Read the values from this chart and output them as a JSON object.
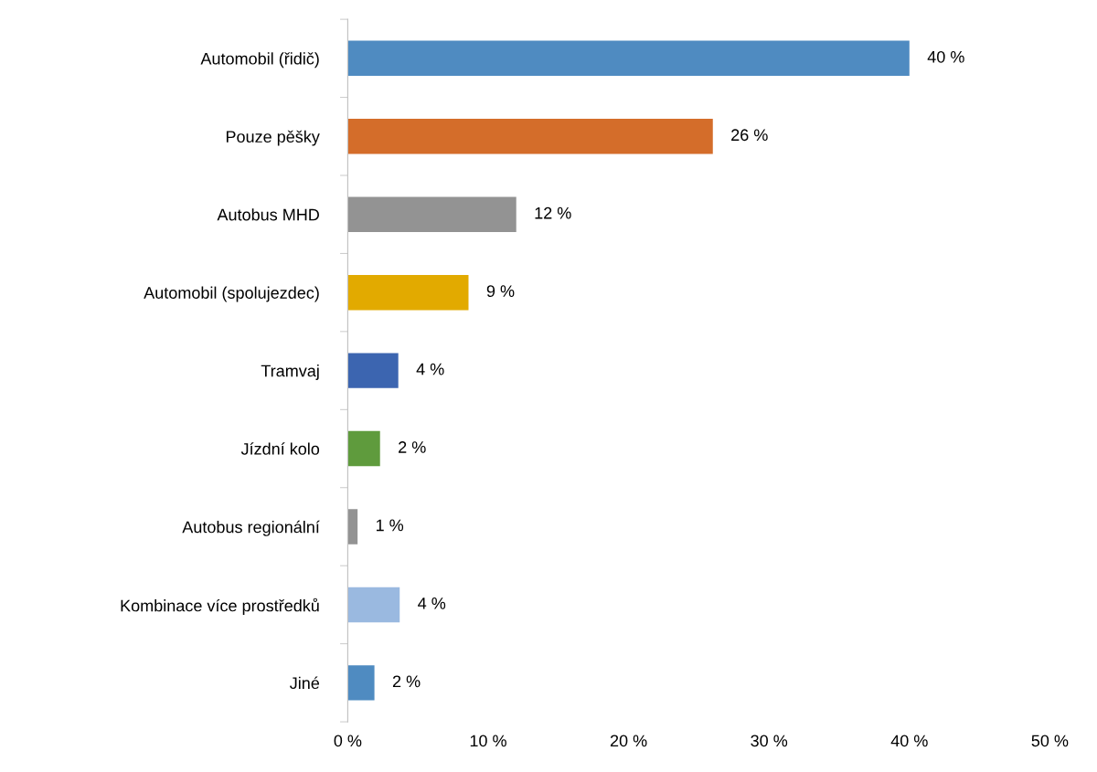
{
  "chart_data": {
    "type": "bar",
    "orientation": "horizontal",
    "categories": [
      "Automobil (řidič)",
      "Pouze pěšky",
      "Autobus MHD",
      "Automobil (spolujezdec)",
      "Tramvaj",
      "Jízdní kolo",
      "Autobus regionální",
      "Kombinace více prostředků",
      "Jiné"
    ],
    "values": [
      40.0,
      26.0,
      12.0,
      8.6,
      3.6,
      2.3,
      0.7,
      3.7,
      1.9
    ],
    "value_labels": [
      "40 %",
      "26 %",
      "12 %",
      "9 %",
      "4 %",
      "2 %",
      "1 %",
      "4 %",
      "2 %"
    ],
    "colors": [
      "#4f8bc1",
      "#d46d2a",
      "#939393",
      "#e2aa00",
      "#3c65b0",
      "#5f9b3d",
      "#939393",
      "#9ab9e0",
      "#4f8bc1"
    ],
    "xlim": [
      0,
      50
    ],
    "xticks": [
      {
        "value": 0,
        "label": "0 %"
      },
      {
        "value": 10,
        "label": "10 %"
      },
      {
        "value": 20,
        "label": "20 %"
      },
      {
        "value": 30,
        "label": "30 %"
      },
      {
        "value": 40,
        "label": "40 %"
      },
      {
        "value": 50,
        "label": "50 %"
      }
    ],
    "grid": false,
    "legend": false
  }
}
